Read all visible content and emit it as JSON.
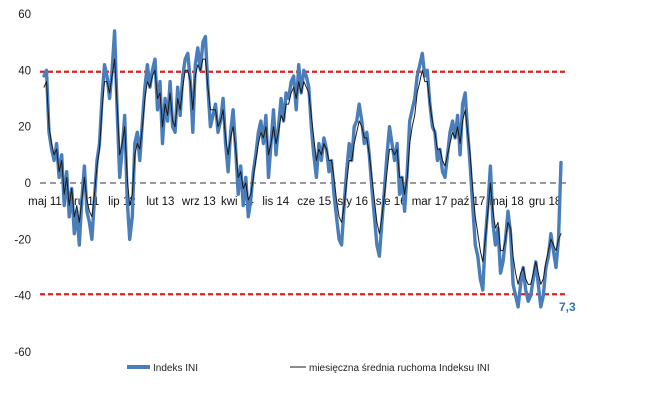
{
  "chart_data": {
    "type": "line",
    "title": "",
    "xlabel": "",
    "ylabel": "",
    "ylim": [
      -60,
      60
    ],
    "y_ticks": [
      -60,
      -40,
      -20,
      0,
      20,
      40,
      60
    ],
    "x_ticks": [
      "maj 11",
      "gru 11",
      "lip 12",
      "lut 13",
      "wrz 13",
      "kwi 14",
      "lis 14",
      "cze 15",
      "sty 16",
      "sie 16",
      "mar 17",
      "paź 17",
      "maj 18",
      "gru 18"
    ],
    "reference_lines": [
      {
        "value": 39.5,
        "color": "#E02020",
        "style": "dashed"
      },
      {
        "value": -39.5,
        "color": "#E02020",
        "style": "dashed"
      },
      {
        "value": 0,
        "color": "#9A9A9A",
        "style": "dashed"
      }
    ],
    "series": [
      {
        "name": "Indeks INI",
        "color": "#4A7EBB",
        "values": [
          38,
          40,
          18,
          12,
          8,
          14,
          2,
          10,
          -8,
          4,
          -12,
          -2,
          -18,
          -10,
          -22,
          -6,
          6,
          -10,
          -14,
          -20,
          -6,
          8,
          14,
          30,
          42,
          38,
          30,
          40,
          54,
          26,
          2,
          12,
          24,
          -6,
          -20,
          -12,
          14,
          18,
          8,
          22,
          34,
          42,
          34,
          40,
          44,
          26,
          36,
          14,
          30,
          22,
          36,
          20,
          18,
          34,
          24,
          38,
          44,
          46,
          36,
          18,
          42,
          48,
          40,
          50,
          52,
          34,
          20,
          24,
          28,
          18,
          22,
          30,
          14,
          4,
          18,
          26,
          12,
          -4,
          6,
          -8,
          2,
          -12,
          -6,
          4,
          10,
          18,
          22,
          14,
          24,
          2,
          14,
          26,
          10,
          20,
          30,
          22,
          32,
          30,
          36,
          38,
          26,
          42,
          32,
          40,
          38,
          34,
          20,
          10,
          2,
          14,
          8,
          16,
          12,
          4,
          8,
          -4,
          -12,
          -20,
          -22,
          -8,
          4,
          14,
          8,
          20,
          22,
          28,
          22,
          14,
          18,
          10,
          -2,
          -12,
          -22,
          -26,
          -14,
          -2,
          10,
          20,
          14,
          8,
          14,
          -4,
          2,
          -10,
          4,
          22,
          26,
          30,
          38,
          42,
          46,
          38,
          40,
          28,
          20,
          18,
          8,
          12,
          4,
          2,
          10,
          18,
          22,
          16,
          24,
          10,
          28,
          32,
          18,
          6,
          -8,
          -22,
          -26,
          -34,
          -38,
          -20,
          -8,
          6,
          -14,
          -22,
          -16,
          -32,
          -28,
          -20,
          -10,
          -18,
          -36,
          -40,
          -44,
          -36,
          -30,
          -38,
          -42,
          -40,
          -34,
          -28,
          -36,
          -44,
          -40,
          -30,
          -26,
          -18,
          -24,
          -30,
          -20,
          7.3
        ]
      },
      {
        "name": "miesięczna średnia ruchoma Indeksu INI",
        "color": "#1A1A1A",
        "values": [
          34,
          36,
          20,
          14,
          10,
          12,
          4,
          8,
          -4,
          2,
          -8,
          -2,
          -12,
          -8,
          -14,
          -6,
          2,
          -6,
          -10,
          -12,
          -4,
          6,
          12,
          26,
          36,
          36,
          32,
          38,
          44,
          28,
          10,
          14,
          20,
          2,
          -8,
          -4,
          10,
          14,
          12,
          20,
          30,
          36,
          34,
          38,
          40,
          30,
          32,
          20,
          28,
          24,
          32,
          22,
          20,
          30,
          26,
          34,
          40,
          40,
          36,
          26,
          38,
          42,
          40,
          44,
          44,
          34,
          26,
          26,
          26,
          20,
          22,
          26,
          16,
          10,
          16,
          20,
          12,
          2,
          4,
          -2,
          0,
          -6,
          -4,
          2,
          8,
          14,
          18,
          16,
          20,
          10,
          14,
          20,
          14,
          18,
          24,
          22,
          28,
          28,
          32,
          34,
          30,
          36,
          32,
          36,
          34,
          32,
          24,
          16,
          8,
          12,
          10,
          14,
          12,
          8,
          8,
          2,
          -6,
          -12,
          -14,
          -8,
          0,
          8,
          8,
          14,
          18,
          22,
          20,
          16,
          16,
          10,
          2,
          -6,
          -14,
          -18,
          -12,
          -4,
          4,
          12,
          12,
          10,
          12,
          2,
          2,
          -4,
          2,
          14,
          20,
          24,
          32,
          36,
          40,
          36,
          36,
          28,
          22,
          18,
          12,
          12,
          8,
          6,
          10,
          14,
          18,
          16,
          20,
          14,
          22,
          26,
          18,
          10,
          -2,
          -12,
          -18,
          -24,
          -28,
          -20,
          -10,
          0,
          -10,
          -16,
          -14,
          -24,
          -24,
          -20,
          -14,
          -16,
          -26,
          -32,
          -36,
          -32,
          -30,
          -34,
          -36,
          -36,
          -32,
          -28,
          -32,
          -36,
          -34,
          -28,
          -24,
          -20,
          -22,
          -24,
          -20,
          -18
        ]
      }
    ],
    "end_label": "7,3",
    "legend_position": "bottom",
    "grid": false
  }
}
